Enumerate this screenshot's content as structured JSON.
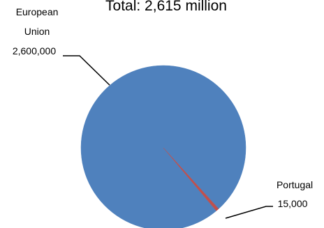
{
  "chart_data": {
    "type": "pie",
    "title": "Total: 2,615 million",
    "slices": [
      {
        "name": "European Union",
        "name_lines": [
          "European",
          "Union"
        ],
        "value": 2600000,
        "value_label": "2,600,000",
        "color": "#4F81BD"
      },
      {
        "name": "Portugal",
        "name_lines": [
          "Portugal"
        ],
        "value": 15000,
        "value_label": "15,000",
        "color": "#C0504D"
      }
    ]
  }
}
